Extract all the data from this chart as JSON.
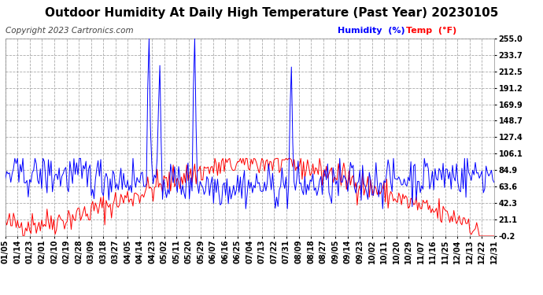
{
  "title": "Outdoor Humidity At Daily High Temperature (Past Year) 20230105",
  "copyright": "Copyright 2023 Cartronics.com",
  "legend_humidity": "Humidity  (%)",
  "legend_temp": "Temp  (°F)",
  "humidity_color": "#0000FF",
  "temp_color": "#FF0000",
  "bg_color": "#FFFFFF",
  "plot_bg_color": "#FFFFFF",
  "grid_color": "#AAAAAA",
  "yticks": [
    255.0,
    233.7,
    212.5,
    191.2,
    169.9,
    148.7,
    127.4,
    106.1,
    84.9,
    63.6,
    42.3,
    21.1,
    -0.2
  ],
  "ylim": [
    -0.2,
    255.0
  ],
  "x_labels": [
    "01/05",
    "01/14",
    "01/23",
    "02/01",
    "02/10",
    "02/19",
    "02/28",
    "03/09",
    "03/18",
    "03/27",
    "04/05",
    "04/14",
    "04/23",
    "05/02",
    "05/11",
    "05/20",
    "05/29",
    "06/07",
    "06/16",
    "06/25",
    "07/04",
    "07/13",
    "07/22",
    "07/31",
    "08/09",
    "08/18",
    "08/27",
    "09/05",
    "09/14",
    "09/23",
    "10/02",
    "10/11",
    "10/20",
    "10/29",
    "11/07",
    "11/16",
    "11/25",
    "12/04",
    "12/13",
    "12/22",
    "12/31"
  ],
  "n_points": 365,
  "spike_indices": [
    107,
    115,
    141,
    213
  ],
  "spike_values": [
    255,
    220,
    255,
    218
  ],
  "title_fontsize": 11,
  "copyright_fontsize": 7.5,
  "legend_fontsize": 8,
  "tick_fontsize": 7
}
